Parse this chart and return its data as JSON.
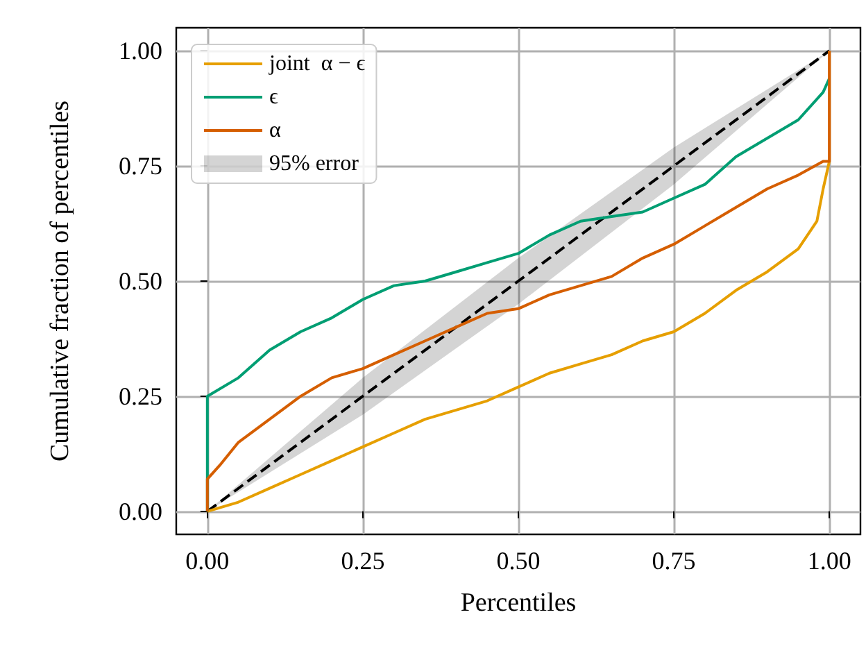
{
  "chart_data": {
    "type": "line",
    "xlabel": "Percentiles",
    "ylabel": "Cumulative fraction of percentiles",
    "series": [
      {
        "name": "joint  α − ϵ",
        "color": "#e69f00",
        "x": [
          0,
          0.05,
          0.1,
          0.15,
          0.2,
          0.25,
          0.3,
          0.35,
          0.4,
          0.45,
          0.5,
          0.55,
          0.6,
          0.65,
          0.7,
          0.75,
          0.8,
          0.85,
          0.9,
          0.95,
          0.98,
          0.99,
          1.0,
          1.0
        ],
        "values": [
          0,
          0.02,
          0.05,
          0.08,
          0.11,
          0.14,
          0.17,
          0.2,
          0.22,
          0.24,
          0.27,
          0.3,
          0.32,
          0.34,
          0.37,
          0.39,
          0.43,
          0.48,
          0.52,
          0.57,
          0.63,
          0.7,
          0.76,
          1.0
        ]
      },
      {
        "name": "ϵ",
        "color": "#009e73",
        "x": [
          0,
          0,
          0.05,
          0.1,
          0.15,
          0.2,
          0.25,
          0.3,
          0.35,
          0.4,
          0.45,
          0.5,
          0.55,
          0.6,
          0.65,
          0.7,
          0.75,
          0.8,
          0.85,
          0.9,
          0.95,
          0.99,
          1.0
        ],
        "values": [
          0,
          0.25,
          0.29,
          0.35,
          0.39,
          0.42,
          0.46,
          0.49,
          0.5,
          0.52,
          0.54,
          0.56,
          0.6,
          0.63,
          0.64,
          0.65,
          0.68,
          0.71,
          0.77,
          0.81,
          0.85,
          0.91,
          0.94
        ]
      },
      {
        "name": "α",
        "color": "#d55e00",
        "x": [
          0,
          0,
          0.02,
          0.05,
          0.1,
          0.15,
          0.2,
          0.25,
          0.3,
          0.35,
          0.4,
          0.45,
          0.5,
          0.55,
          0.6,
          0.65,
          0.7,
          0.75,
          0.8,
          0.85,
          0.9,
          0.95,
          0.99,
          1.0,
          1.0
        ],
        "values": [
          0,
          0.07,
          0.1,
          0.15,
          0.2,
          0.25,
          0.29,
          0.31,
          0.34,
          0.37,
          0.4,
          0.43,
          0.44,
          0.47,
          0.49,
          0.51,
          0.55,
          0.58,
          0.62,
          0.66,
          0.7,
          0.73,
          0.76,
          0.76,
          1.0
        ]
      },
      {
        "name": "95% error",
        "color": "#000000",
        "line_style": "dashed",
        "x": [
          0,
          0.25,
          0.5,
          0.75,
          1.0
        ],
        "values": [
          0,
          0.25,
          0.5,
          0.75,
          1.0
        ],
        "lower": [
          0,
          0.21,
          0.45,
          0.71,
          1.0
        ],
        "upper": [
          0,
          0.29,
          0.55,
          0.79,
          1.0
        ]
      }
    ],
    "xlim": [
      -0.05,
      1.05
    ],
    "ylim": [
      -0.05,
      1.05
    ],
    "xticks": [
      {
        "value": 0,
        "label": "0.00"
      },
      {
        "value": 0.25,
        "label": "0.25"
      },
      {
        "value": 0.5,
        "label": "0.50"
      },
      {
        "value": 0.75,
        "label": "0.75"
      },
      {
        "value": 1,
        "label": "1.00"
      }
    ],
    "yticks": [
      {
        "value": 0,
        "label": "0.00"
      },
      {
        "value": 0.25,
        "label": "0.25"
      },
      {
        "value": 0.5,
        "label": "0.50"
      },
      {
        "value": 0.75,
        "label": "0.75"
      },
      {
        "value": 1,
        "label": "1.00"
      }
    ],
    "grid": true,
    "legend": "top left",
    "marker": "none",
    "line_style": "solid"
  }
}
